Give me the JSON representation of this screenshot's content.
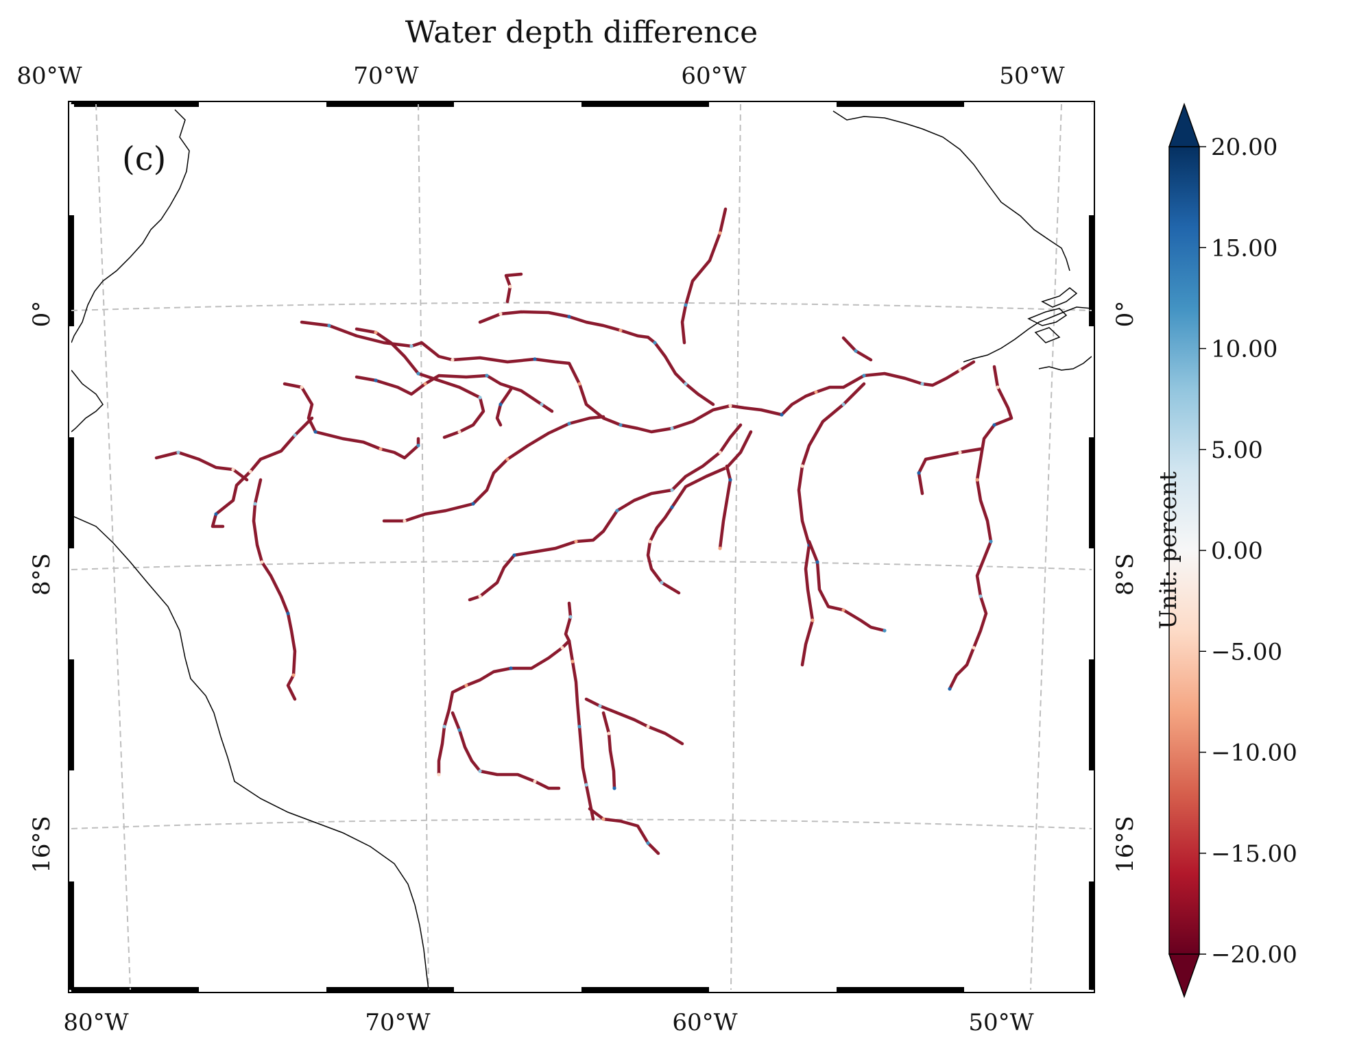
{
  "title": "Water depth difference",
  "panel_label": "(c)",
  "axes": {
    "top_lon_ticks": [
      "80°W",
      "70°W",
      "60°W",
      "50°W"
    ],
    "bottom_lon_ticks": [
      "80°W",
      "70°W",
      "60°W",
      "50°W"
    ],
    "left_lat_ticks": [
      "0°",
      "8°S",
      "16°S"
    ],
    "right_lat_ticks": [
      "0°",
      "8°S",
      "16°S"
    ]
  },
  "colorbar": {
    "label": "Unit: percent",
    "min": -20,
    "max": 20,
    "extend": "both",
    "colormap": "RdBu",
    "ticks": [
      "20.00",
      "15.00",
      "10.00",
      "5.00",
      "0.00",
      "−5.00",
      "−10.00",
      "−15.00",
      "−20.00"
    ],
    "stops": [
      "#67001f",
      "#b2182b",
      "#d6604d",
      "#f4a582",
      "#fddbc7",
      "#f7f7f7",
      "#d1e5f0",
      "#92c5de",
      "#4393c3",
      "#2166ac",
      "#053061"
    ]
  },
  "colors": {
    "dominant_river": "#8b1a2e",
    "gridline": "#bdbdbd",
    "coast": "#000000"
  }
}
